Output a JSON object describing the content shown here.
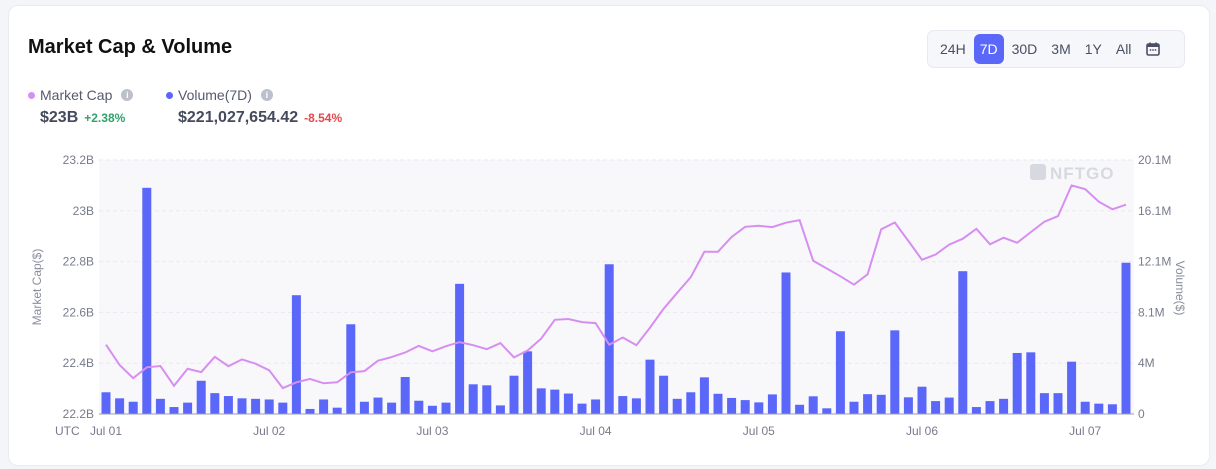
{
  "title": "Market Cap & Volume",
  "legend": {
    "market_cap": {
      "label": "Market Cap",
      "value": "$23B",
      "change": "+2.38%",
      "color": "#d68ef0",
      "change_color": "#2ea36a"
    },
    "volume": {
      "label": "Volume(7D)",
      "value": "$221,027,654.42",
      "change": "-8.54%",
      "color": "#5b67f8",
      "change_color": "#e5484d"
    },
    "info_icon": "i"
  },
  "range": {
    "options": [
      "24H",
      "7D",
      "30D",
      "3M",
      "1Y",
      "All"
    ],
    "selected": "7D",
    "calendar_icon": "calendar-icon"
  },
  "watermark": "NFTGO",
  "chart_data": {
    "type": "bar+line",
    "x_timezone_label": "UTC",
    "x_tick_labels": [
      "Jul 01",
      "Jul 02",
      "Jul 03",
      "Jul 04",
      "Jul 05",
      "Jul 06",
      "Jul 07"
    ],
    "points_per_day": 12,
    "y_left": {
      "label": "Market Cap($)",
      "ticks": [
        "22.2B",
        "22.4B",
        "22.6B",
        "22.8B",
        "23B",
        "23.2B"
      ],
      "range": [
        22.2,
        23.2
      ],
      "unit": "B"
    },
    "y_right": {
      "label": "Volume($)",
      "ticks": [
        "0",
        "4M",
        "8.1M",
        "12.1M",
        "16.1M",
        "20.1M"
      ],
      "range": [
        0,
        20.1
      ],
      "unit": "M"
    },
    "grid": true,
    "series": [
      {
        "name": "Volume(7D)",
        "type": "bar",
        "axis": "right",
        "color": "#5b67f8",
        "values": [
          1.72,
          1.24,
          0.97,
          17.9,
          1.2,
          0.55,
          0.9,
          2.63,
          1.65,
          1.42,
          1.24,
          1.2,
          1.15,
          0.9,
          9.4,
          0.4,
          1.15,
          0.5,
          7.1,
          0.97,
          1.3,
          0.9,
          2.93,
          1.05,
          0.65,
          0.9,
          10.3,
          2.35,
          2.27,
          0.68,
          3.03,
          4.96,
          2.03,
          1.93,
          1.62,
          0.82,
          1.15,
          11.85,
          1.42,
          1.24,
          4.3,
          3.03,
          1.2,
          1.72,
          2.9,
          1.6,
          1.27,
          1.1,
          0.92,
          1.55,
          11.2,
          0.73,
          1.4,
          0.45,
          6.55,
          0.97,
          1.57,
          1.52,
          6.62,
          1.32,
          2.16,
          1.02,
          1.3,
          11.3,
          0.55,
          1.02,
          1.2,
          4.83,
          4.88,
          1.65,
          1.65,
          4.14,
          0.97,
          0.82,
          0.77,
          11.97
        ]
      },
      {
        "name": "Market Cap",
        "type": "line",
        "axis": "left",
        "color": "#d68ef0",
        "values": [
          22.473,
          22.393,
          22.341,
          22.384,
          22.389,
          22.311,
          22.378,
          22.365,
          22.425,
          22.388,
          22.415,
          22.398,
          22.372,
          22.302,
          22.325,
          22.338,
          22.321,
          22.325,
          22.364,
          22.369,
          22.41,
          22.424,
          22.442,
          22.468,
          22.447,
          22.467,
          22.483,
          22.471,
          22.455,
          22.479,
          22.423,
          22.45,
          22.497,
          22.571,
          22.574,
          22.562,
          22.558,
          22.473,
          22.501,
          22.471,
          22.54,
          22.614,
          22.677,
          22.739,
          22.839,
          22.839,
          22.897,
          22.937,
          22.941,
          22.936,
          22.953,
          22.963,
          22.803,
          22.773,
          22.742,
          22.709,
          22.75,
          22.927,
          22.954,
          22.881,
          22.807,
          22.828,
          22.867,
          22.89,
          22.929,
          22.868,
          22.894,
          22.874,
          22.916,
          22.957,
          22.979,
          23.1,
          23.085,
          23.036,
          23.006,
          23.024
        ]
      }
    ]
  }
}
